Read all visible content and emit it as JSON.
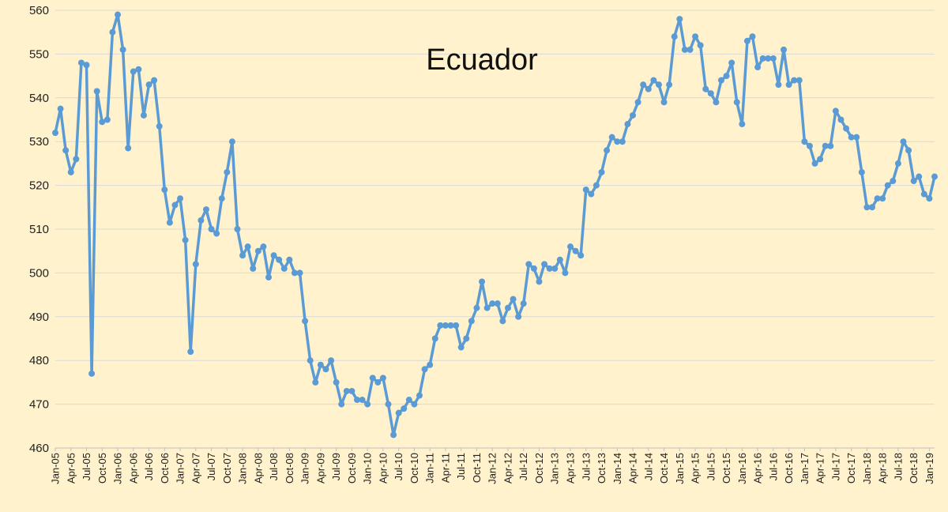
{
  "chart_data": {
    "type": "line",
    "title": "Ecuador",
    "xlabel": "",
    "ylabel": "",
    "ylim": [
      460,
      560
    ],
    "yticks": [
      460,
      470,
      480,
      490,
      500,
      510,
      520,
      530,
      540,
      550,
      560
    ],
    "grid": true,
    "legend": "none",
    "x_tick_labels": [
      "Jan-05",
      "Apr-05",
      "Jul-05",
      "Oct-05",
      "Jan-06",
      "Apr-06",
      "Jul-06",
      "Oct-06",
      "Jan-07",
      "Apr-07",
      "Jul-07",
      "Oct-07",
      "Jan-08",
      "Apr-08",
      "Jul-08",
      "Oct-08",
      "Jan-09",
      "Apr-09",
      "Jul-09",
      "Oct-09",
      "Jan-10",
      "Apr-10",
      "Jul-10",
      "Oct-10",
      "Jan-11",
      "Apr-11",
      "Jul-11",
      "Oct-11",
      "Jan-12",
      "Apr-12",
      "Jul-12",
      "Oct-12",
      "Jan-13",
      "Apr-13",
      "Jul-13",
      "Oct-13",
      "Jan-14",
      "Apr-14",
      "Jul-14",
      "Oct-14",
      "Jan-15",
      "Apr-15",
      "Jul-15",
      "Oct-15",
      "Jan-16",
      "Apr-16",
      "Jul-16",
      "Oct-16",
      "Jan-17",
      "Apr-17",
      "Jul-17",
      "Oct-17",
      "Jan-18",
      "Apr-18",
      "Jul-18",
      "Oct-18",
      "Jan-19"
    ],
    "series": [
      {
        "values": [
          532,
          537.5,
          528,
          523,
          526,
          548,
          547.5,
          477,
          541.5,
          534.5,
          535,
          555,
          559,
          551,
          528.5,
          546,
          546.5,
          536,
          543,
          544,
          533.5,
          519,
          511.5,
          515.5,
          517,
          507.5,
          482,
          502,
          512,
          514.5,
          510,
          509,
          517,
          523,
          530,
          510,
          504,
          506,
          501,
          505,
          506,
          499,
          504,
          503,
          501,
          503,
          500,
          500,
          489,
          480,
          475,
          479,
          478,
          480,
          475,
          470,
          473,
          473,
          471,
          471,
          470,
          476,
          475,
          476,
          470,
          463,
          468,
          469,
          471,
          470,
          472,
          478,
          479,
          485,
          488,
          488,
          488,
          488,
          483,
          485,
          489,
          492,
          498,
          492,
          493,
          493,
          489,
          492,
          494,
          490,
          493,
          502,
          501,
          498,
          502,
          501,
          501,
          503,
          500,
          506,
          505,
          504,
          519,
          518,
          520,
          523,
          528,
          531,
          530,
          530,
          534,
          536,
          539,
          543,
          542,
          544,
          543,
          539,
          543,
          554,
          558,
          551,
          551,
          554,
          552,
          542,
          541,
          539,
          544,
          545,
          548,
          539,
          534,
          553,
          554,
          547,
          549,
          549,
          549,
          543,
          551,
          543,
          544,
          544,
          530,
          529,
          525,
          526,
          529,
          529,
          537,
          535,
          533,
          531,
          531,
          523,
          515,
          515,
          517,
          517,
          520,
          521,
          525,
          530,
          528,
          521,
          522,
          518,
          517,
          522
        ]
      }
    ],
    "colors": {
      "line": "#5B9BD5",
      "marker": "#5B9BD5",
      "grid": "#D9D9D9",
      "background": "#FFF2CC"
    }
  }
}
